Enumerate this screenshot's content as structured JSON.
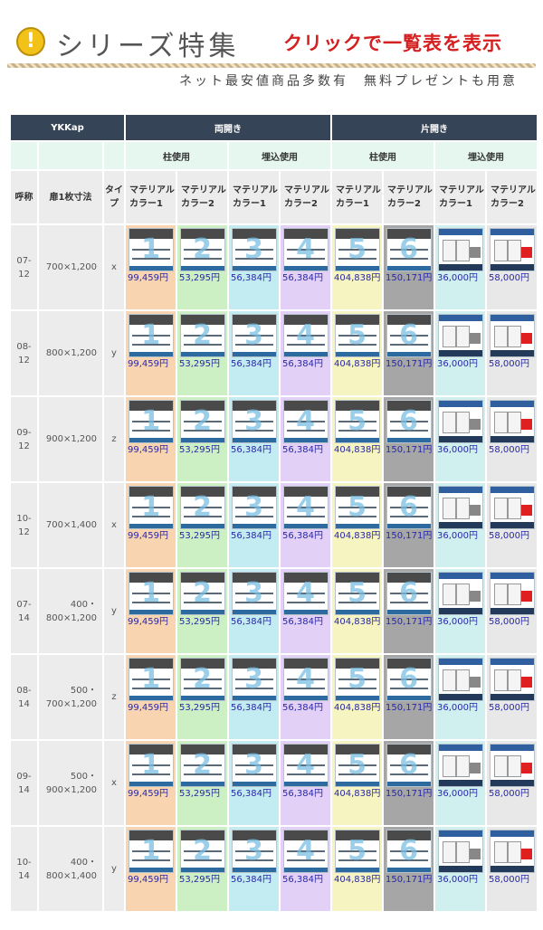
{
  "banner": {
    "icon": "exclamation-icon",
    "icon_glyph": "!",
    "title": "シリーズ特集",
    "link_text": "クリックで一覧表を表示",
    "subtitle": "ネット最安値商品多数有　無料プレゼントも用意"
  },
  "table": {
    "brand": "YKKap",
    "group_double": "両開き",
    "group_single": "片開き",
    "sub_pillar": "柱使用",
    "sub_embedded": "埋込使用",
    "sub_pillar_2": "柱使用",
    "sub_embedded_2": "埋込使用",
    "col_code": "呼称",
    "col_size": "扉1枚寸法",
    "col_type": "タイプ",
    "color_cols": [
      "マテリアルカラー1",
      "マテリアルカラー2",
      "マテリアルカラー1",
      "マテリアルカラー2",
      "マテリアルカラー1",
      "マテリアルカラー2",
      "マテリアルカラー1",
      "マテリアルカラー2"
    ],
    "column_bg": [
      "#f9d4b0",
      "#ccefc4",
      "#c3ecf2",
      "#e3d0f6",
      "#f6f4c0",
      "#a6a6a6",
      "#d0f0f0",
      "#e8e8e8"
    ],
    "thumb_numbers": [
      "1",
      "2",
      "3",
      "4",
      "5",
      "6"
    ],
    "prices": [
      "99,459円",
      "53,295円",
      "56,384円",
      "56,384円",
      "404,838円",
      "150,171円",
      "36,000円",
      "58,000円"
    ],
    "rows": [
      {
        "code": "07-12",
        "size": "700×1,200",
        "type": "x"
      },
      {
        "code": "08-12",
        "size": "800×1,200",
        "type": "y"
      },
      {
        "code": "09-12",
        "size": "900×1,200",
        "type": "z"
      },
      {
        "code": "10-12",
        "size": "700×1,400",
        "type": "x"
      },
      {
        "code": "07-14",
        "size": "400・800×1,200",
        "type": "y"
      },
      {
        "code": "08-14",
        "size": "500・700×1,200",
        "type": "z"
      },
      {
        "code": "09-14",
        "size": "500・900×1,200",
        "type": "x"
      },
      {
        "code": "10-14",
        "size": "400・800×1,400",
        "type": "y"
      }
    ]
  }
}
